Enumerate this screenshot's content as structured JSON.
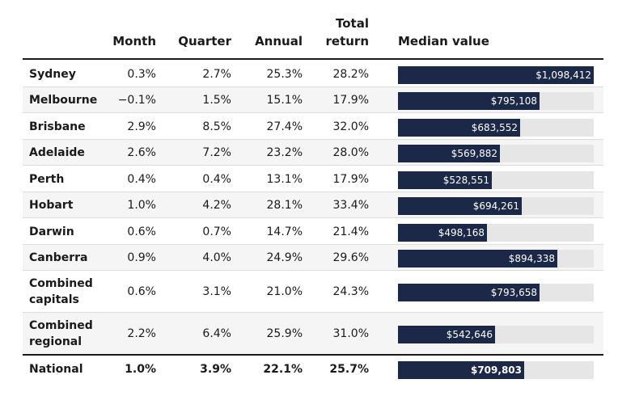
{
  "chart_data": {
    "type": "table",
    "columns": [
      "",
      "Month",
      "Quarter",
      "Annual",
      "Total return",
      "Median value"
    ],
    "header": {
      "month": "Month",
      "quarter": "Quarter",
      "annual": "Annual",
      "total_line1": "Total",
      "total_line2": "return",
      "median": "Median value"
    },
    "bar_color": "#1c2848",
    "track_color": "#e6e6e6",
    "median_max": 1098412,
    "rows": [
      {
        "name": "Sydney",
        "month": "0.3%",
        "quarter": "2.7%",
        "annual": "25.3%",
        "total": "28.2%",
        "median_label": "$1,098,412",
        "median_value": 1098412
      },
      {
        "name": "Melbourne",
        "month": "−0.1%",
        "quarter": "1.5%",
        "annual": "15.1%",
        "total": "17.9%",
        "median_label": "$795,108",
        "median_value": 795108
      },
      {
        "name": "Brisbane",
        "month": "2.9%",
        "quarter": "8.5%",
        "annual": "27.4%",
        "total": "32.0%",
        "median_label": "$683,552",
        "median_value": 683552
      },
      {
        "name": "Adelaide",
        "month": "2.6%",
        "quarter": "7.2%",
        "annual": "23.2%",
        "total": "28.0%",
        "median_label": "$569,882",
        "median_value": 569882
      },
      {
        "name": "Perth",
        "month": "0.4%",
        "quarter": "0.4%",
        "annual": "13.1%",
        "total": "17.9%",
        "median_label": "$528,551",
        "median_value": 528551
      },
      {
        "name": "Hobart",
        "month": "1.0%",
        "quarter": "4.2%",
        "annual": "28.1%",
        "total": "33.4%",
        "median_label": "$694,261",
        "median_value": 694261
      },
      {
        "name": "Darwin",
        "month": "0.6%",
        "quarter": "0.7%",
        "annual": "14.7%",
        "total": "21.4%",
        "median_label": "$498,168",
        "median_value": 498168
      },
      {
        "name": "Canberra",
        "month": "0.9%",
        "quarter": "4.0%",
        "annual": "24.9%",
        "total": "29.6%",
        "median_label": "$894,338",
        "median_value": 894338
      },
      {
        "name": "Combined capitals",
        "month": "0.6%",
        "quarter": "3.1%",
        "annual": "21.0%",
        "total": "24.3%",
        "median_label": "$793,658",
        "median_value": 793658
      },
      {
        "name": "Combined regional",
        "month": "2.2%",
        "quarter": "6.4%",
        "annual": "25.9%",
        "total": "31.0%",
        "median_label": "$542,646",
        "median_value": 542646
      },
      {
        "name": "National",
        "month": "1.0%",
        "quarter": "3.9%",
        "annual": "22.1%",
        "total": "25.7%",
        "median_label": "$709,803",
        "median_value": 709803
      }
    ]
  }
}
